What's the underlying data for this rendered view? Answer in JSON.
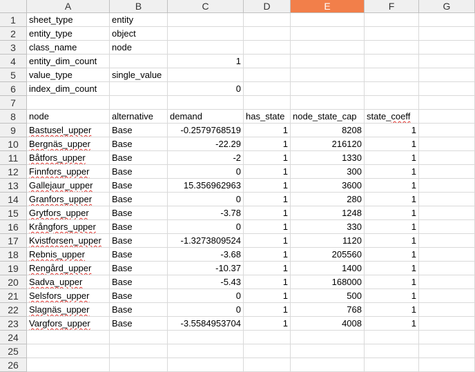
{
  "columns": [
    {
      "letter": "A",
      "active": false
    },
    {
      "letter": "B",
      "active": false
    },
    {
      "letter": "C",
      "active": false
    },
    {
      "letter": "D",
      "active": false
    },
    {
      "letter": "E",
      "active": true
    },
    {
      "letter": "F",
      "active": false
    },
    {
      "letter": "G",
      "active": false
    }
  ],
  "rows": [
    {
      "n": "1",
      "cells": [
        "sheet_type",
        "entity",
        "",
        "",
        "",
        "",
        ""
      ]
    },
    {
      "n": "2",
      "cells": [
        "entity_type",
        "object",
        "",
        "",
        "",
        "",
        ""
      ]
    },
    {
      "n": "3",
      "cells": [
        "class_name",
        "node",
        "",
        "",
        "",
        "",
        ""
      ]
    },
    {
      "n": "4",
      "cells": [
        "entity_dim_count",
        "",
        "1",
        "",
        "",
        "",
        ""
      ]
    },
    {
      "n": "5",
      "cells": [
        "value_type",
        "single_value",
        "",
        "",
        "",
        "",
        ""
      ]
    },
    {
      "n": "6",
      "cells": [
        "index_dim_count",
        "",
        "0",
        "",
        "",
        "",
        ""
      ]
    },
    {
      "n": "7",
      "cells": [
        "",
        "",
        "",
        "",
        "",
        "",
        ""
      ]
    },
    {
      "n": "8",
      "cells": [
        "node",
        "alternative",
        "demand",
        "has_state",
        "node_state_cap",
        "state_coeff",
        ""
      ]
    },
    {
      "n": "9",
      "cells": [
        "Bastusel_upper",
        "Base",
        "-0.2579768519",
        "1",
        "8208",
        "1",
        ""
      ]
    },
    {
      "n": "10",
      "cells": [
        "Bergnäs_upper",
        "Base",
        "-22.29",
        "1",
        "216120",
        "1",
        ""
      ]
    },
    {
      "n": "11",
      "cells": [
        "Båtfors_upper",
        "Base",
        "-2",
        "1",
        "1330",
        "1",
        ""
      ]
    },
    {
      "n": "12",
      "cells": [
        "Finnfors_upper",
        "Base",
        "0",
        "1",
        "300",
        "1",
        ""
      ]
    },
    {
      "n": "13",
      "cells": [
        "Gallejaur_upper",
        "Base",
        "15.356962963",
        "1",
        "3600",
        "1",
        ""
      ]
    },
    {
      "n": "14",
      "cells": [
        "Granfors_upper",
        "Base",
        "0",
        "1",
        "280",
        "1",
        ""
      ]
    },
    {
      "n": "15",
      "cells": [
        "Grytfors_upper",
        "Base",
        "-3.78",
        "1",
        "1248",
        "1",
        ""
      ]
    },
    {
      "n": "16",
      "cells": [
        "Krångfors_upper",
        "Base",
        "0",
        "1",
        "330",
        "1",
        ""
      ]
    },
    {
      "n": "17",
      "cells": [
        "Kvistforsen_upper",
        "Base",
        "-1.3273809524",
        "1",
        "1120",
        "1",
        ""
      ]
    },
    {
      "n": "18",
      "cells": [
        "Rebnis_upper",
        "Base",
        "-3.68",
        "1",
        "205560",
        "1",
        ""
      ]
    },
    {
      "n": "19",
      "cells": [
        "Rengård_upper",
        "Base",
        "-10.37",
        "1",
        "1400",
        "1",
        ""
      ]
    },
    {
      "n": "20",
      "cells": [
        "Sadva_upper",
        "Base",
        "-5.43",
        "1",
        "168000",
        "1",
        ""
      ]
    },
    {
      "n": "21",
      "cells": [
        "Selsfors_upper",
        "Base",
        "0",
        "1",
        "500",
        "1",
        ""
      ]
    },
    {
      "n": "22",
      "cells": [
        "Slagnäs_upper",
        "Base",
        "0",
        "1",
        "768",
        "1",
        ""
      ]
    },
    {
      "n": "23",
      "cells": [
        "Vargfors_upper",
        "Base",
        "-3.5584953704",
        "1",
        "4008",
        "1",
        ""
      ]
    },
    {
      "n": "24",
      "cells": [
        "",
        "",
        "",
        "",
        "",
        "",
        ""
      ]
    },
    {
      "n": "25",
      "cells": [
        "",
        "",
        "",
        "",
        "",
        "",
        ""
      ]
    },
    {
      "n": "26",
      "cells": [
        "",
        "",
        "",
        "",
        "",
        "",
        ""
      ]
    }
  ]
}
